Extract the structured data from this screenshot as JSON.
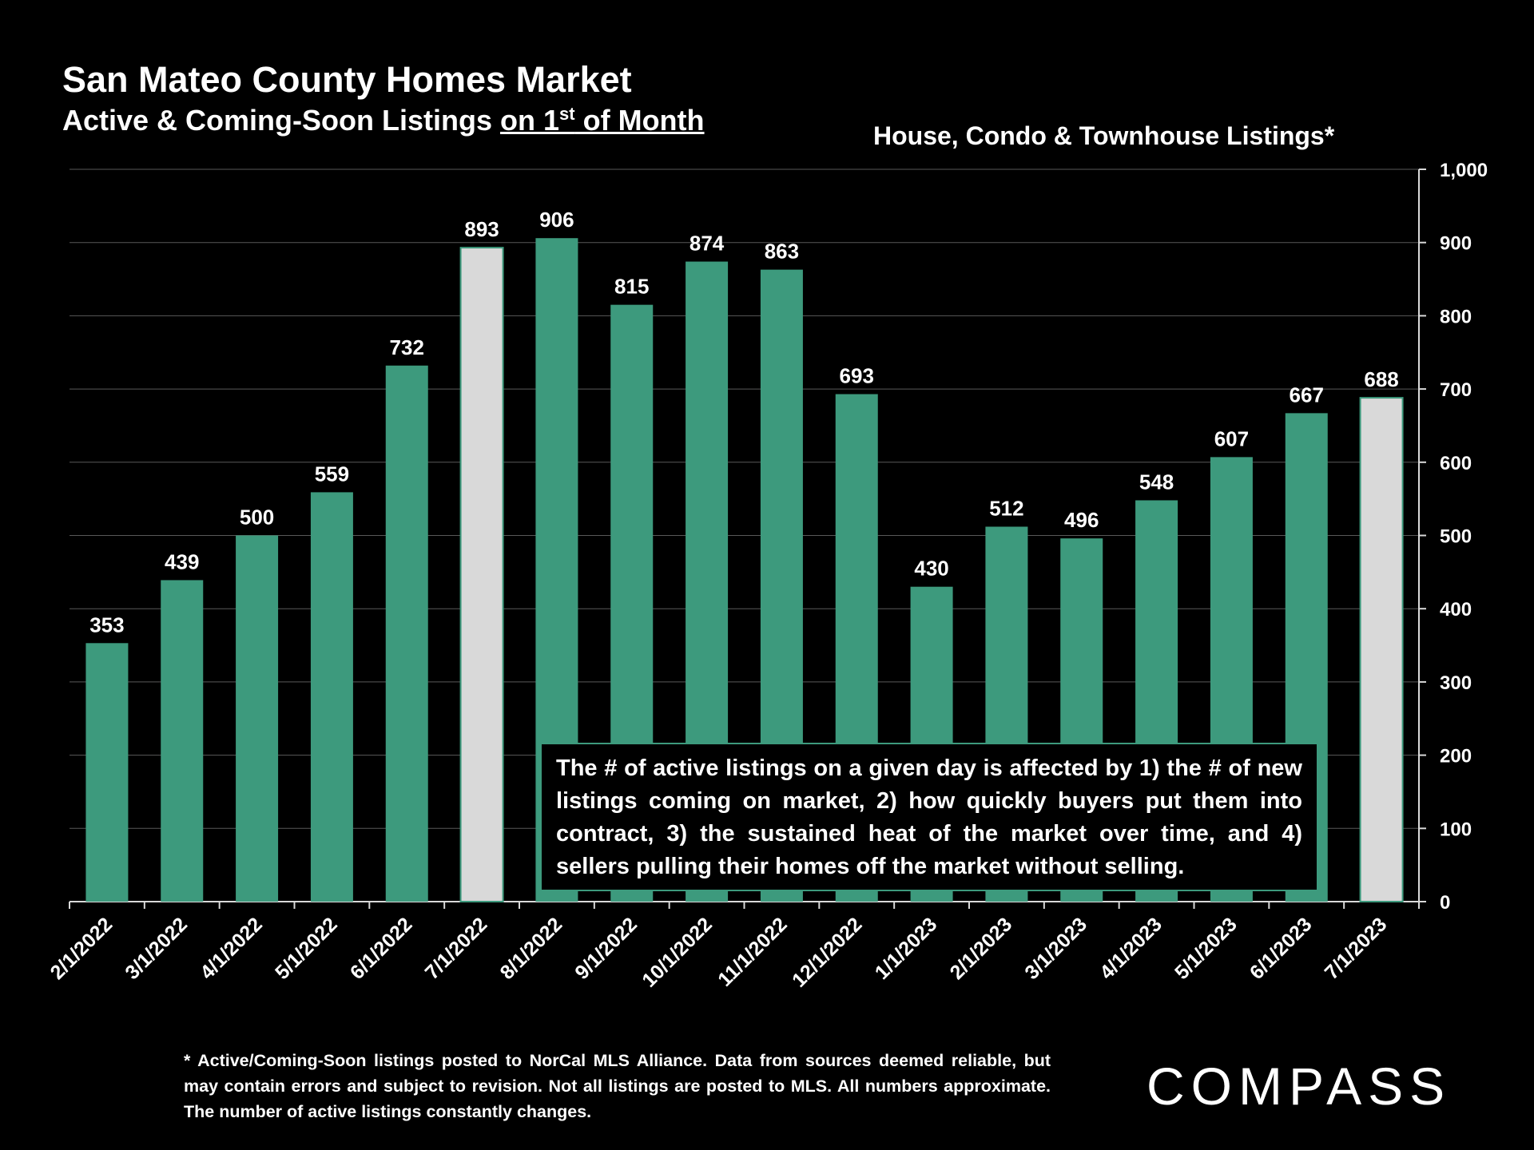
{
  "title": "San Mateo County Homes Market",
  "subtitle_prefix": "Active & Coming-Soon Listings ",
  "subtitle_underlined_a": "on 1",
  "subtitle_sup": "st",
  "subtitle_underlined_b": " of Month",
  "right_title": "House, Condo & Townhouse Listings*",
  "annotation": "The # of active listings on a given day is affected by 1) the # of new listings coming on market, 2) how quickly buyers put them into contract, 3) the sustained heat of the market over time, and 4) sellers pulling their homes off the market without selling.",
  "footnote": "* Active/Coming-Soon listings posted to NorCal MLS Alliance.  Data from sources deemed reliable, but may contain errors and subject to revision.  Not all listings are posted to MLS. All numbers approximate. The number of active listings constantly changes.",
  "logo_text": "COMPASS",
  "colors": {
    "bar": "#3d9a7d",
    "highlight": "#d9d9d9",
    "background": "#000000",
    "grid": "#595959"
  },
  "chart_data": {
    "type": "bar",
    "title": "House, Condo & Townhouse Listings*",
    "categories": [
      "2/1/2022",
      "3/1/2022",
      "4/1/2022",
      "5/1/2022",
      "6/1/2022",
      "7/1/2022",
      "8/1/2022",
      "9/1/2022",
      "10/1/2022",
      "11/1/2022",
      "12/1/2022",
      "1/1/2023",
      "2/1/2023",
      "3/1/2023",
      "4/1/2023",
      "5/1/2023",
      "6/1/2023",
      "7/1/2023"
    ],
    "values": [
      353,
      439,
      500,
      559,
      732,
      893,
      906,
      815,
      874,
      863,
      693,
      430,
      512,
      496,
      548,
      607,
      667,
      688
    ],
    "highlighted": [
      "7/1/2022",
      "7/1/2023"
    ],
    "ylim": [
      0,
      1000
    ],
    "yticks": [
      0,
      100,
      200,
      300,
      400,
      500,
      600,
      700,
      800,
      900,
      1000
    ],
    "ytick_labels": [
      "0",
      "100",
      "200",
      "300",
      "400",
      "500",
      "600",
      "700",
      "800",
      "900",
      "1,000"
    ],
    "y_axis_side": "right",
    "xlabel": "",
    "ylabel": "",
    "grid": true
  }
}
